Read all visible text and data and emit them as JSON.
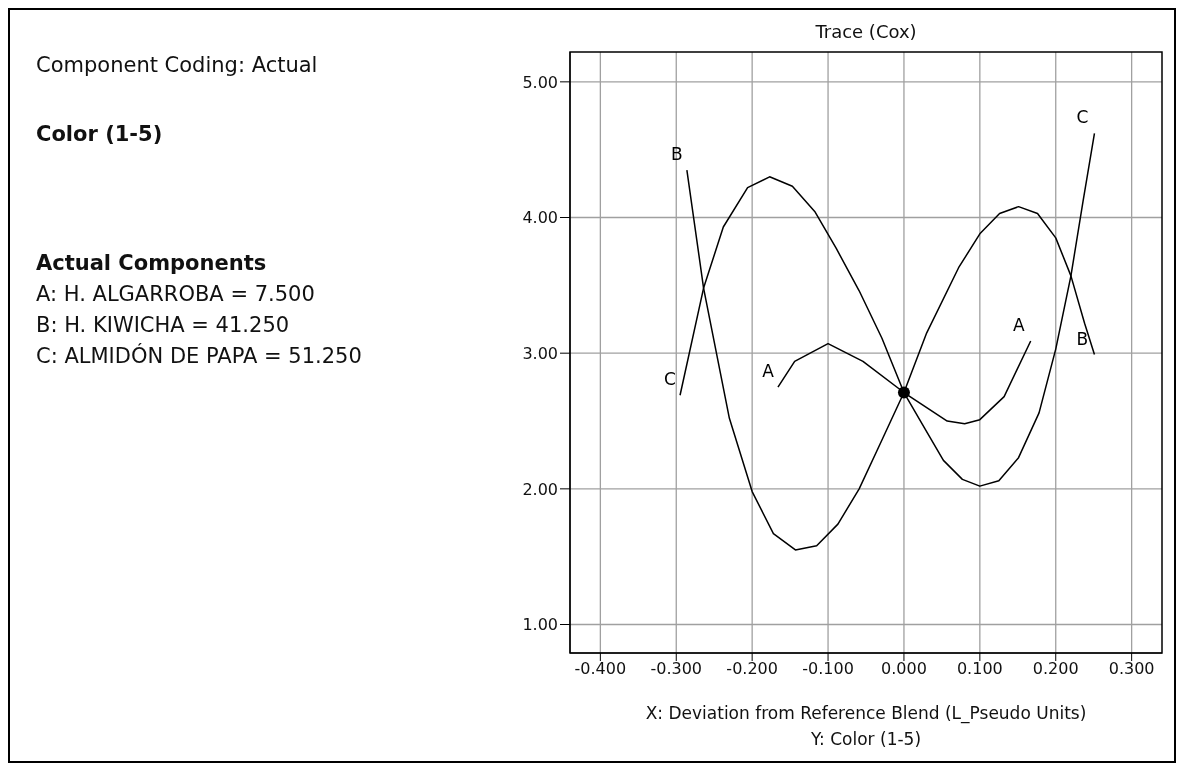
{
  "chart_data": {
    "type": "line",
    "title": "Trace (Cox)",
    "xlabel": "X: Deviation from Reference Blend (L_Pseudo Units)",
    "annotations": [
      "Component Coding: Actual",
      "Color (1-5)",
      "Actual Components",
      "A: H. ALGARROBA = 7.500",
      "B: H. KIWICHA = 41.250",
      "C: ALMIDÓN DE PAPA = 51.250",
      "Y: Color (1-5)"
    ],
    "xlim": [
      -0.44,
      0.34
    ],
    "xticks": [
      {
        "value": -0.4,
        "label": "-0.400"
      },
      {
        "value": -0.3,
        "label": "-0.300"
      },
      {
        "value": -0.2,
        "label": "-0.200"
      },
      {
        "value": -0.1,
        "label": "-0.100"
      },
      {
        "value": 0,
        "label": "0.000"
      },
      {
        "value": 0.1,
        "label": "0.100"
      },
      {
        "value": 0.2,
        "label": "0.200"
      },
      {
        "value": 0.3,
        "label": "0.300"
      }
    ],
    "ylim": [
      0.79,
      5.22
    ],
    "yticks": [
      {
        "value": 1,
        "label": "1.00"
      },
      {
        "value": 2,
        "label": "2.00"
      },
      {
        "value": 3,
        "label": "3.00"
      },
      {
        "value": 4,
        "label": "4.00"
      },
      {
        "value": 5,
        "label": "5.00"
      }
    ],
    "grid": true,
    "line_style": "solid",
    "marker": "none",
    "series": [
      {
        "name": "A",
        "color": "#000000",
        "x": [
          -0.166,
          -0.144,
          -0.1,
          -0.054,
          0,
          0.057,
          0.08,
          0.1,
          0.132,
          0.167
        ],
        "values": [
          2.75,
          2.94,
          3.07,
          2.94,
          2.71,
          2.5,
          2.48,
          2.51,
          2.68,
          3.09
        ]
      },
      {
        "name": "B",
        "color": "#000000",
        "x": [
          -0.286,
          -0.264,
          -0.23,
          -0.2,
          -0.172,
          -0.143,
          -0.115,
          -0.087,
          -0.059,
          -0.029,
          0,
          0.03,
          0.072,
          0.1,
          0.126,
          0.151,
          0.176,
          0.2,
          0.22,
          0.238,
          0.251
        ],
        "values": [
          4.35,
          3.48,
          2.52,
          1.98,
          1.67,
          1.55,
          1.58,
          1.74,
          2.0,
          2.36,
          2.71,
          3.15,
          3.63,
          3.88,
          4.03,
          4.08,
          4.03,
          3.85,
          3.57,
          3.22,
          2.99
        ]
      },
      {
        "name": "C",
        "color": "#000000",
        "x": [
          -0.295,
          -0.264,
          -0.238,
          -0.206,
          -0.177,
          -0.147,
          -0.117,
          -0.089,
          -0.059,
          -0.029,
          0,
          0.027,
          0.052,
          0.077,
          0.1,
          0.125,
          0.151,
          0.178,
          0.2,
          0.22,
          0.236,
          0.251
        ],
        "values": [
          2.69,
          3.48,
          3.93,
          4.22,
          4.3,
          4.23,
          4.04,
          3.77,
          3.46,
          3.11,
          2.71,
          2.45,
          2.21,
          2.07,
          2.02,
          2.06,
          2.23,
          2.56,
          3.03,
          3.57,
          4.12,
          4.62
        ]
      },
      {
        "type": "scatter",
        "color": "#000000",
        "marker": "circle",
        "x": [
          0
        ],
        "values": [
          2.71
        ]
      }
    ]
  }
}
